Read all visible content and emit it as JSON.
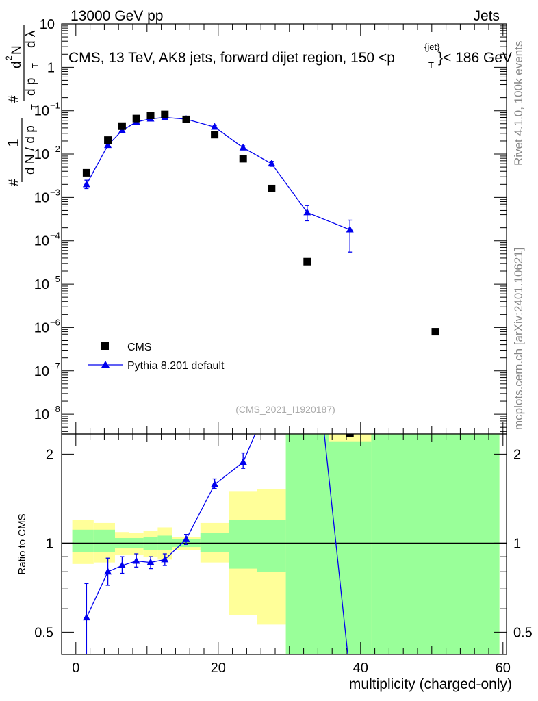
{
  "header": {
    "left": "13000 GeV pp",
    "right": "Jets"
  },
  "side": {
    "rivet": "Rivet 4.1.0,  100k events",
    "mcplots": "mcplots.cern.ch [arXiv:2401.10621]"
  },
  "colors": {
    "mc": "#0000ee",
    "data": "#000000",
    "band_outer": "#ffff99",
    "band_inner": "#99ff99"
  },
  "chart_data": [
    {
      "type": "scatter",
      "panel": "main",
      "title": "CMS, 13 TeV, AK8 jets, forward dijet region, 150 <p_T^{jet}< 186 GeV",
      "title_main": "CMS, 13 TeV, AK8 jets, forward dijet region, 150 <p",
      "title_sup": "{jet}",
      "title_sub": "T",
      "title_end": "}< 186 GeV",
      "ylabel": "1/(dN/dp_T) d²N/(dp_T dλ)",
      "ylabel_parts": {
        "one": "1",
        "hash": "#",
        "dN": "d N / d p",
        "T": "T",
        "num": "d",
        "num2": "N",
        "sup2": "2",
        "den": "d p",
        "dlambda": "d λ"
      },
      "yscale": "log",
      "ylim": [
        3.5e-09,
        10
      ],
      "xlim": [
        -2,
        60.5
      ],
      "yticks": [
        {
          "value": 10,
          "label": "10",
          "exp": ""
        },
        {
          "value": 1,
          "label": "1",
          "exp": ""
        },
        {
          "value": 0.1,
          "label": "10",
          "exp": "−1"
        },
        {
          "value": 0.01,
          "label": "10",
          "exp": "−2"
        },
        {
          "value": 0.001,
          "label": "10",
          "exp": "−3"
        },
        {
          "value": 0.0001,
          "label": "10",
          "exp": "−4"
        },
        {
          "value": 1e-05,
          "label": "10",
          "exp": "−5"
        },
        {
          "value": 1e-06,
          "label": "10",
          "exp": "−6"
        },
        {
          "value": 1e-07,
          "label": "10",
          "exp": "−7"
        },
        {
          "value": 1e-08,
          "label": "10",
          "exp": "−8"
        }
      ],
      "watermark": "(CMS_2021_I1920187)",
      "legend": [
        {
          "name": "CMS",
          "marker": "square"
        },
        {
          "name": "Pythia 8.201 default",
          "marker": "triangle-line"
        }
      ],
      "series": [
        {
          "name": "CMS",
          "x": [
            1.5,
            4.5,
            6.5,
            8.5,
            10.5,
            12.5,
            15.5,
            19.5,
            23.5,
            27.5,
            32.5,
            38.5,
            50.5
          ],
          "y": [
            0.0037,
            0.021,
            0.044,
            0.066,
            0.078,
            0.082,
            0.063,
            0.028,
            0.0078,
            0.0016,
            3.3e-05,
            2.8e-09,
            8e-07
          ]
        },
        {
          "name": "Pythia 8.201 default",
          "x": [
            1.5,
            4.5,
            6.5,
            8.5,
            10.5,
            12.5,
            15.5,
            19.5,
            23.5,
            27.5,
            32.5,
            38.5
          ],
          "y": [
            0.002,
            0.016,
            0.035,
            0.055,
            0.065,
            0.07,
            0.064,
            0.042,
            0.014,
            0.006,
            0.00045,
            0.00018
          ],
          "err_low": [
            0.0016,
            0.0143,
            0.0325,
            0.052,
            0.062,
            0.067,
            0.061,
            0.039,
            0.0125,
            0.0052,
            0.00029,
            5.5e-05
          ],
          "err_high": [
            0.0025,
            0.018,
            0.038,
            0.058,
            0.068,
            0.073,
            0.067,
            0.045,
            0.0155,
            0.0068,
            0.00065,
            0.0003
          ]
        }
      ]
    },
    {
      "type": "line",
      "panel": "ratio",
      "ylabel": "Ratio to CMS",
      "xlabel": "multiplicity (charged-only)",
      "ylim": [
        0.42,
        2.34
      ],
      "xlim": [
        -2,
        60.5
      ],
      "xticks": [
        0,
        20,
        40,
        60
      ],
      "yticks": [
        0.5,
        1,
        2
      ],
      "bands": [
        {
          "x0": -0.5,
          "x1": 2.5,
          "outer": [
            0.85,
            1.2
          ],
          "inner": [
            0.93,
            1.11
          ]
        },
        {
          "x0": 2.5,
          "x1": 5.5,
          "outer": [
            0.86,
            1.17
          ],
          "inner": [
            0.93,
            1.11
          ]
        },
        {
          "x0": 5.5,
          "x1": 7.5,
          "outer": [
            0.91,
            1.09
          ],
          "inner": [
            0.96,
            1.04
          ]
        },
        {
          "x0": 7.5,
          "x1": 9.5,
          "outer": [
            0.91,
            1.08
          ],
          "inner": [
            0.96,
            1.04
          ]
        },
        {
          "x0": 9.5,
          "x1": 11.5,
          "outer": [
            0.9,
            1.1
          ],
          "inner": [
            0.95,
            1.05
          ]
        },
        {
          "x0": 11.5,
          "x1": 13.5,
          "outer": [
            0.88,
            1.13
          ],
          "inner": [
            0.95,
            1.06
          ]
        },
        {
          "x0": 13.5,
          "x1": 17.5,
          "outer": [
            0.95,
            1.05
          ],
          "inner": [
            0.97,
            1.03
          ]
        },
        {
          "x0": 17.5,
          "x1": 21.5,
          "outer": [
            0.86,
            1.17
          ],
          "inner": [
            0.93,
            1.08
          ]
        },
        {
          "x0": 21.5,
          "x1": 25.5,
          "outer": [
            0.57,
            1.5
          ],
          "inner": [
            0.82,
            1.2
          ]
        },
        {
          "x0": 25.5,
          "x1": 29.5,
          "outer": [
            0.53,
            1.52
          ],
          "inner": [
            0.8,
            1.2
          ]
        },
        {
          "x0": 29.5,
          "x1": 41.5,
          "outer": [
            0.35,
            2.4
          ],
          "inner": [
            0.35,
            2.4
          ]
        },
        {
          "x0": 41.5,
          "x1": 59.5,
          "outer": [
            0.35,
            2.4
          ],
          "inner": [
            0.35,
            2.4
          ]
        }
      ],
      "yellow_top": {
        "x0": 35.5,
        "x1": 41.5,
        "from": 2.21
      },
      "series": [
        {
          "name": "Pythia 8.201 default / CMS",
          "x": [
            1.5,
            4.5,
            6.5,
            8.5,
            10.5,
            12.5,
            15.5,
            19.5,
            23.5
          ],
          "y": [
            0.56,
            0.8,
            0.84,
            0.87,
            0.86,
            0.88,
            1.03,
            1.58,
            1.88
          ],
          "err_low": [
            0.37,
            0.72,
            0.79,
            0.83,
            0.82,
            0.84,
            0.99,
            1.53,
            1.79
          ],
          "err_high": [
            0.73,
            0.89,
            0.9,
            0.92,
            0.9,
            0.92,
            1.07,
            1.65,
            2.02
          ]
        }
      ],
      "line_ext": [
        {
          "x": 23.5,
          "y": 1.88
        },
        {
          "x": 25.2,
          "y": 2.34
        }
      ],
      "steep_line": [
        {
          "x": 34.9,
          "y": 2.34
        },
        {
          "x": 38.2,
          "y": 0.42
        }
      ]
    }
  ]
}
